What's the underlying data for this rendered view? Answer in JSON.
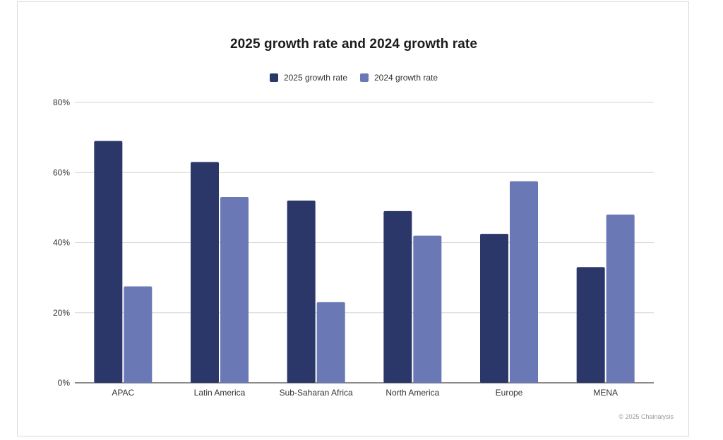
{
  "chart_data": {
    "type": "bar",
    "title": "2025 growth rate and 2024 growth rate",
    "categories": [
      "APAC",
      "Latin America",
      "Sub-Saharan Africa",
      "North America",
      "Europe",
      "MENA"
    ],
    "series": [
      {
        "name": "2025 growth rate",
        "values": [
          69,
          63,
          52,
          49,
          42.5,
          33
        ],
        "color": "#2b3768"
      },
      {
        "name": "2024 growth rate",
        "values": [
          27.5,
          53,
          23,
          42,
          57.5,
          48
        ],
        "color": "#6a78b6"
      }
    ],
    "ylim": [
      0,
      80
    ],
    "yticks": [
      0,
      20,
      40,
      60,
      80
    ],
    "ytick_labels": [
      "0%",
      "20%",
      "40%",
      "60%",
      "80%"
    ],
    "grid": true,
    "legend_position": "top"
  },
  "footer": {
    "copyright": "© 2025 Chainalysis"
  }
}
